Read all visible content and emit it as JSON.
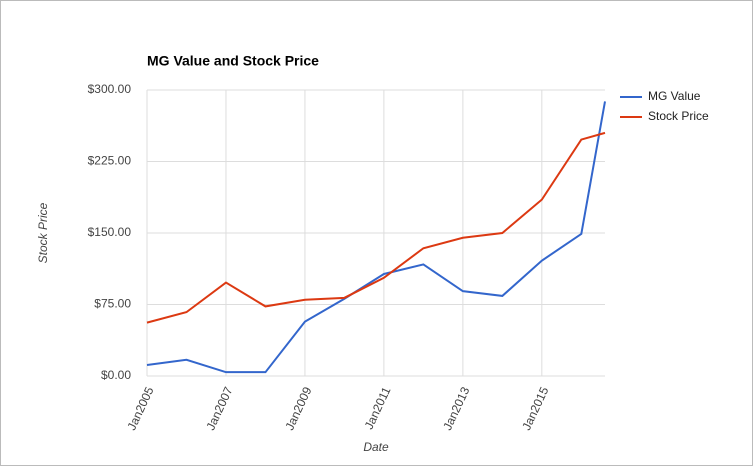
{
  "chart_data": {
    "type": "line",
    "title": "MG Value and Stock Price",
    "x_label": "Date",
    "y_label": "Stock Price",
    "x": [
      2005,
      2006,
      2007,
      2008,
      2009,
      2010,
      2011,
      2012,
      2013,
      2014,
      2015,
      2016,
      2016.6
    ],
    "series": [
      {
        "name": "MG Value",
        "color": "#3366cc",
        "values": [
          11.5,
          17,
          4,
          4,
          57,
          81,
          107,
          117,
          89,
          84,
          121,
          149,
          288
        ]
      },
      {
        "name": "Stock Price",
        "color": "#dc3912",
        "values": [
          56,
          67,
          98,
          73,
          80,
          82,
          103,
          134,
          145,
          150,
          185,
          248,
          255
        ]
      }
    ],
    "xlim": [
      2005,
      2016.6
    ],
    "xticks": [
      {
        "value": 2005,
        "label": "Jan2005"
      },
      {
        "value": 2007,
        "label": "Jan2007"
      },
      {
        "value": 2009,
        "label": "Jan2009"
      },
      {
        "value": 2011,
        "label": "Jan2011"
      },
      {
        "value": 2013,
        "label": "Jan2013"
      },
      {
        "value": 2015,
        "label": "Jan2015"
      }
    ],
    "ylim": [
      0,
      300
    ],
    "yticks": [
      {
        "value": 0,
        "label": "$0.00"
      },
      {
        "value": 75,
        "label": "$75.00"
      },
      {
        "value": 150,
        "label": "$150.00"
      },
      {
        "value": 225,
        "label": "$225.00"
      },
      {
        "value": 300,
        "label": "$300.00"
      }
    ],
    "grid": true,
    "legend": "right"
  }
}
